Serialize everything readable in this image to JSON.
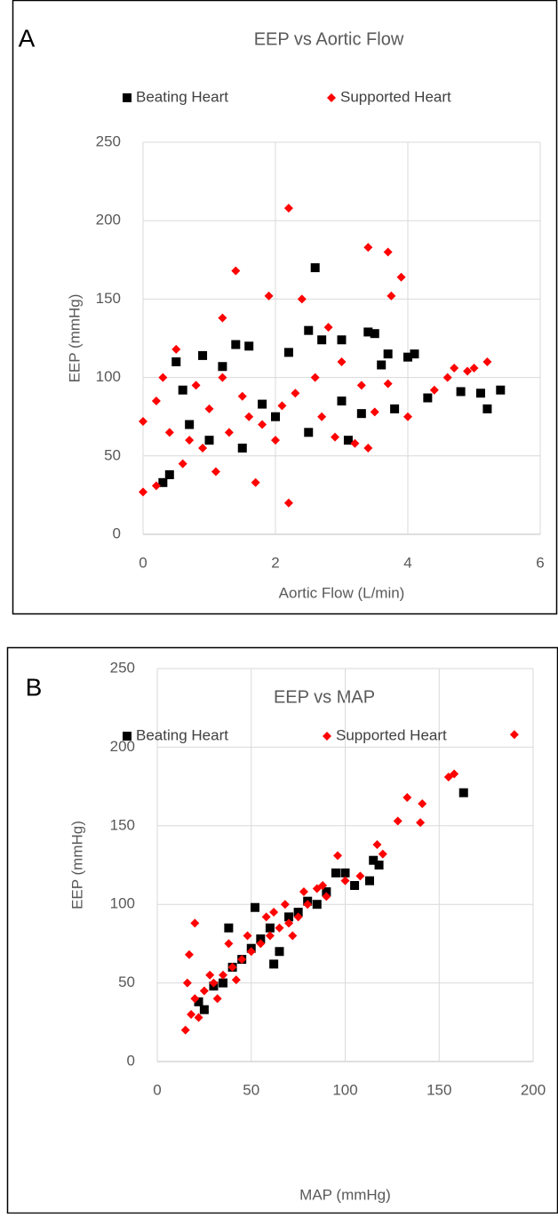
{
  "chart_data": [
    {
      "type": "scatter",
      "panel_label": "A",
      "title": "EEP vs Aortic Flow",
      "xlabel": "Aortic Flow (L/min)",
      "ylabel": "EEP (mmHg)",
      "xlim": [
        0,
        6
      ],
      "xticks": [
        0,
        2,
        4,
        6
      ],
      "ylim": [
        0,
        250
      ],
      "yticks": [
        0,
        50,
        100,
        150,
        200,
        250
      ],
      "grid": true,
      "legend": "top",
      "series": [
        {
          "name": "Beating Heart",
          "color": "#000000",
          "marker": "square",
          "x": [
            2.6,
            5.4,
            5.2,
            5.1,
            4.8,
            4.3,
            3.8,
            3.4,
            3.5,
            2.5,
            1.4,
            1.6,
            2.2,
            2.7,
            3.0,
            4.0,
            4.1,
            3.7,
            0.3,
            0.4,
            0.5,
            0.9,
            1.2,
            1.8,
            2.0,
            3.0,
            3.3,
            3.6,
            1.0,
            0.7,
            1.5,
            2.5,
            3.1,
            0.6
          ],
          "y": [
            170,
            92,
            80,
            90,
            91,
            87,
            80,
            129,
            128,
            130,
            121,
            120,
            116,
            124,
            124,
            113,
            115,
            115,
            33,
            38,
            110,
            114,
            107,
            83,
            75,
            85,
            77,
            108,
            60,
            70,
            55,
            65,
            60,
            92
          ]
        },
        {
          "name": "Supported Heart",
          "color": "#ff0000",
          "marker": "diamond",
          "x": [
            2.2,
            3.4,
            3.7,
            3.9,
            3.75,
            1.9,
            1.4,
            1.2,
            2.4,
            2.8,
            0.0,
            0.2,
            2.2,
            1.7,
            0.0,
            0.3,
            0.5,
            0.8,
            1.0,
            1.3,
            1.5,
            1.8,
            2.0,
            2.3,
            2.6,
            2.9,
            3.2,
            3.5,
            3.7,
            4.0,
            4.4,
            4.6,
            4.7,
            4.9,
            5.0,
            5.2,
            0.6,
            0.9,
            1.1,
            0.4,
            1.6,
            2.1,
            3.0,
            3.3,
            0.2,
            1.2,
            0.7,
            2.7,
            3.4
          ],
          "y": [
            208,
            183,
            180,
            164,
            152,
            152,
            168,
            138,
            150,
            132,
            27,
            31,
            20,
            33,
            72,
            100,
            118,
            95,
            80,
            65,
            88,
            70,
            60,
            90,
            100,
            62,
            58,
            78,
            96,
            75,
            92,
            100,
            106,
            104,
            106,
            110,
            45,
            55,
            40,
            65,
            75,
            82,
            110,
            95,
            85,
            100,
            60,
            75,
            55
          ]
        }
      ]
    },
    {
      "type": "scatter",
      "panel_label": "B",
      "title": "EEP vs MAP",
      "xlabel": "MAP (mmHg)",
      "ylabel": "EEP (mmHg)",
      "xlim": [
        0,
        200
      ],
      "xticks": [
        0,
        50,
        100,
        150,
        200
      ],
      "ylim": [
        0,
        250
      ],
      "yticks": [
        0,
        50,
        100,
        150,
        200,
        250
      ],
      "grid": true,
      "legend": "top",
      "series": [
        {
          "name": "Beating Heart",
          "color": "#000000",
          "marker": "square",
          "x": [
            163,
            118,
            115,
            113,
            100,
            95,
            90,
            80,
            70,
            60,
            50,
            40,
            30,
            25,
            22,
            35,
            45,
            55,
            65,
            75,
            85,
            105,
            52,
            38,
            62
          ],
          "y": [
            171,
            125,
            128,
            115,
            120,
            120,
            108,
            102,
            92,
            85,
            72,
            60,
            48,
            33,
            38,
            50,
            65,
            78,
            70,
            95,
            100,
            112,
            98,
            85,
            62
          ]
        },
        {
          "name": "Supported Heart",
          "color": "#ff0000",
          "marker": "diamond",
          "x": [
            190,
            158,
            155,
            141,
            140,
            133,
            128,
            117,
            120,
            96,
            100,
            90,
            85,
            80,
            75,
            70,
            65,
            60,
            55,
            50,
            45,
            40,
            35,
            30,
            25,
            20,
            15,
            18,
            20,
            17,
            16,
            22,
            28,
            38,
            48,
            58,
            68,
            78,
            42,
            32,
            88,
            108,
            72,
            62
          ],
          "y": [
            208,
            183,
            181,
            164,
            152,
            168,
            153,
            138,
            132,
            131,
            115,
            105,
            110,
            100,
            92,
            88,
            85,
            80,
            75,
            70,
            65,
            60,
            55,
            50,
            45,
            40,
            20,
            30,
            88,
            68,
            50,
            28,
            55,
            75,
            80,
            92,
            100,
            108,
            52,
            40,
            112,
            118,
            80,
            95
          ]
        }
      ]
    }
  ]
}
